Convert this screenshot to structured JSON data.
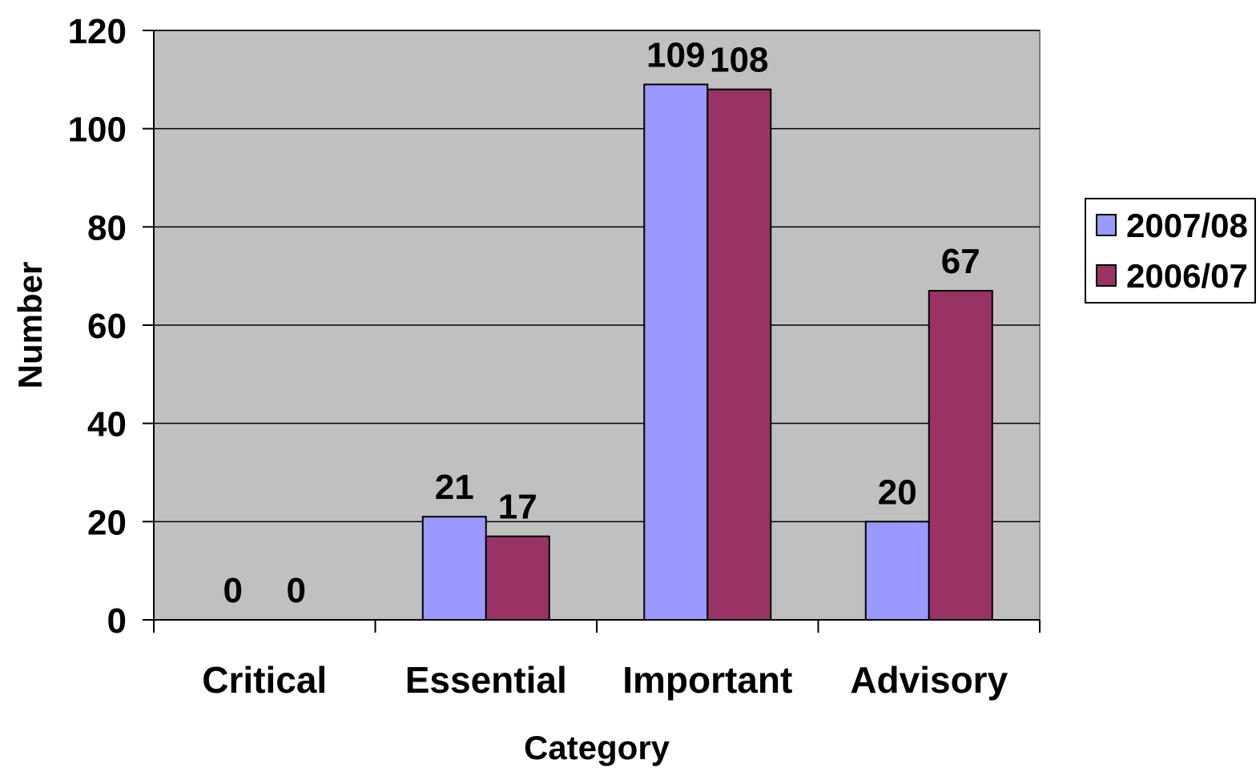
{
  "chart_data": {
    "type": "bar",
    "title": "",
    "xlabel": "Category",
    "ylabel": "Number",
    "categories": [
      "Critical",
      "Essential",
      "Important",
      "Advisory"
    ],
    "series": [
      {
        "name": "2007/08",
        "values": [
          0,
          21,
          109,
          20
        ],
        "color": "#9999ff"
      },
      {
        "name": "2006/07",
        "values": [
          0,
          17,
          108,
          67
        ],
        "color": "#993366"
      }
    ],
    "ylim": [
      0,
      120
    ],
    "yticks": [
      0,
      20,
      40,
      60,
      80,
      100,
      120
    ],
    "grid": true,
    "plot_background": "#c0c0c0",
    "legend_position": "right",
    "data_labels": true
  }
}
